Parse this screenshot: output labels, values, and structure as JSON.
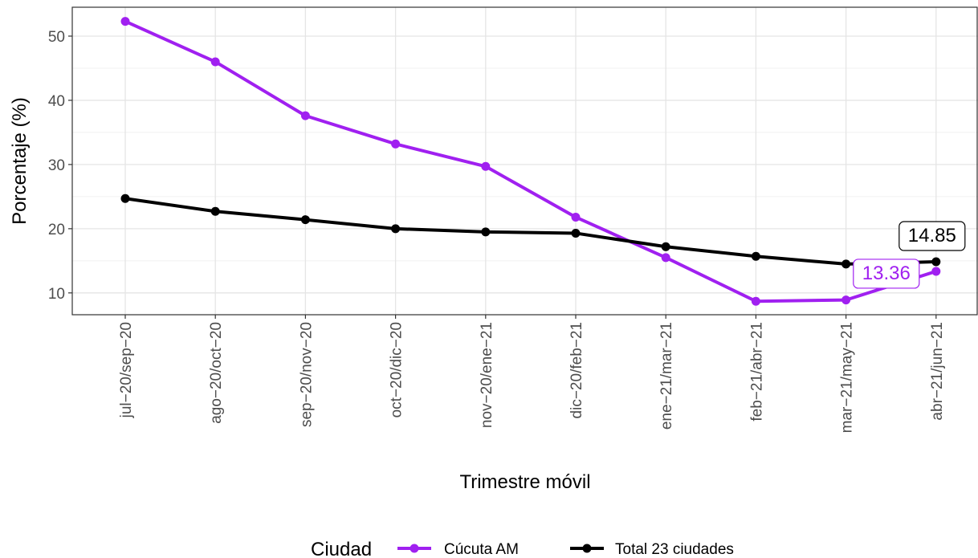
{
  "chart_data": {
    "type": "line",
    "title": "",
    "xlabel": "Trimestre móvil",
    "ylabel": "Porcentaje (%)",
    "categories": [
      "jul−20/sep−20",
      "ago−20/oct−20",
      "sep−20/nov−20",
      "oct−20/dic−20",
      "nov−20/ene−21",
      "dic−20/feb−21",
      "ene−21/mar−21",
      "feb−21/abr−21",
      "mar−21/may−21",
      "abr−21/jun−21"
    ],
    "ylim": [
      6.6,
      54.5
    ],
    "yticks": [
      "10",
      "20",
      "30",
      "40",
      "50"
    ],
    "grid": true,
    "legend": {
      "title": "Ciudad",
      "position": "bottom"
    },
    "series": [
      {
        "name": "Cúcuta AM",
        "color": "#a020f0",
        "values": [
          52.3,
          46.0,
          37.6,
          33.2,
          29.7,
          21.8,
          15.5,
          8.7,
          8.9,
          13.36
        ],
        "end_label": "13.36"
      },
      {
        "name": "Total 23 ciudades",
        "color": "#000000",
        "values": [
          24.7,
          22.7,
          21.4,
          20.0,
          19.5,
          19.3,
          17.2,
          15.7,
          14.5,
          14.85
        ],
        "end_label": "14.85"
      }
    ]
  }
}
